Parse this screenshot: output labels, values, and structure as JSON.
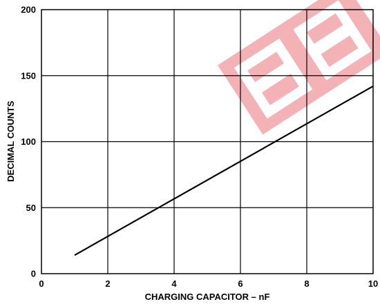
{
  "chart_data": {
    "type": "line",
    "title": "",
    "xlabel": "CHARGING CAPACITOR – nF",
    "ylabel": "DECIMAL COUNTS",
    "xlim": [
      0,
      10
    ],
    "ylim": [
      0,
      200
    ],
    "x_ticks": [
      "0",
      "2",
      "4",
      "6",
      "8",
      "10"
    ],
    "y_ticks": [
      "0",
      "50",
      "100",
      "150",
      "200"
    ],
    "grid": true,
    "series": [
      {
        "x": [
          1,
          10
        ],
        "y": [
          14,
          142
        ]
      }
    ],
    "colors": {
      "line": "#000000",
      "grid": "#000000",
      "watermark": "#e0383e"
    }
  }
}
